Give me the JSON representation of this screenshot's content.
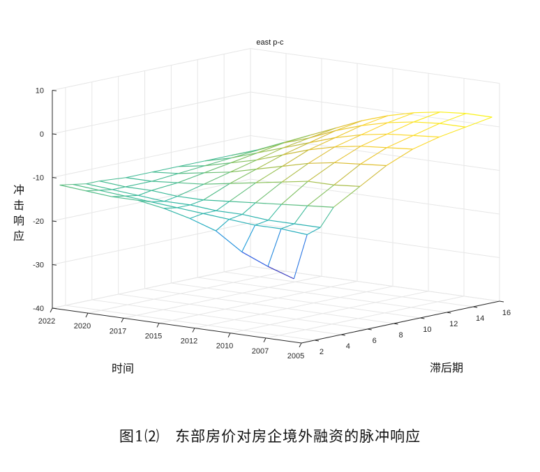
{
  "chart_data": {
    "type": "surface",
    "title": "east p-c",
    "xlabel": "时间",
    "ylabel": "滞后期",
    "zlabel": "冲击响应",
    "x_ticks": [
      "2022",
      "2020",
      "2017",
      "2015",
      "2012",
      "2010",
      "2007",
      "2005"
    ],
    "y_ticks": [
      2,
      4,
      6,
      8,
      10,
      12,
      14,
      16
    ],
    "z_ticks": [
      10,
      0,
      -10,
      -20,
      -30,
      -40
    ],
    "zlim": [
      -40,
      10
    ],
    "ylim": [
      1,
      16
    ],
    "colormap": [
      "#3e26a8",
      "#2f64e7",
      "#1aa4d8",
      "#35b99e",
      "#8cc25a",
      "#d6b934",
      "#fcd52f",
      "#f9fb0e"
    ],
    "surface_series": [
      {
        "lag": 1,
        "values": [
          -11.5,
          -12.0,
          -12.5,
          -12.5,
          -13.5,
          -15.0,
          -17.0,
          -21.0,
          -23.5,
          -25.5
        ]
      },
      {
        "lag": 2,
        "values": [
          -12.0,
          -12.5,
          -13.0,
          -13.5,
          -14.0,
          -14.5,
          -15.0,
          -15.5,
          -15.5,
          -16.0
        ]
      },
      {
        "lag": 3,
        "values": [
          -12.5,
          -13.0,
          -13.5,
          -14.0,
          -14.0,
          -14.5,
          -14.5,
          -15.0,
          -15.0,
          -15.0
        ]
      },
      {
        "lag": 4,
        "values": [
          -12.5,
          -13.0,
          -13.0,
          -13.5,
          -13.5,
          -13.0,
          -12.5,
          -12.0,
          -11.5,
          -11.0
        ]
      },
      {
        "lag": 6,
        "values": [
          -13.0,
          -13.0,
          -12.5,
          -12.0,
          -11.0,
          -10.0,
          -9.0,
          -8.0,
          -8.0,
          -7.5
        ]
      },
      {
        "lag": 8,
        "values": [
          -13.0,
          -12.5,
          -11.5,
          -10.5,
          -9.0,
          -7.5,
          -6.0,
          -5.0,
          -4.5,
          -4.0
        ]
      },
      {
        "lag": 10,
        "values": [
          -13.0,
          -12.0,
          -10.5,
          -9.0,
          -7.0,
          -5.0,
          -3.5,
          -2.5,
          -2.0,
          -1.5
        ]
      },
      {
        "lag": 12,
        "values": [
          -13.0,
          -11.5,
          -9.5,
          -7.5,
          -5.5,
          -3.5,
          -2.0,
          -1.0,
          -0.5,
          0.0
        ]
      },
      {
        "lag": 14,
        "values": [
          -13.0,
          -11.0,
          -8.5,
          -6.5,
          -4.0,
          -2.0,
          -0.5,
          0.5,
          1.0,
          1.0
        ]
      },
      {
        "lag": 16,
        "values": [
          -13.0,
          -10.5,
          -8.0,
          -5.5,
          -3.0,
          -1.0,
          0.5,
          1.5,
          2.0,
          2.0
        ]
      }
    ]
  },
  "caption": "图1⑵　东部房价对房企境外融资的脉冲响应"
}
